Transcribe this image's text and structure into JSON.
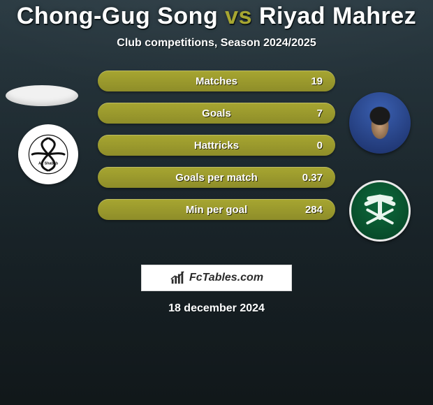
{
  "title": {
    "player1": "Chong-Gug Song",
    "vs": "vs",
    "player2": "Riyad Mahrez"
  },
  "subtitle": "Club competitions, Season 2024/2025",
  "colors": {
    "bar_fill": "#a7a631",
    "bar_fill_dark": "#8e8d29",
    "text": "#ffffff",
    "accent": "#a7a631",
    "bg_top": "#2a3a42",
    "bg_bottom": "#1a2428"
  },
  "stats": [
    {
      "label": "Matches",
      "value_right": "19"
    },
    {
      "label": "Goals",
      "value_right": "7"
    },
    {
      "label": "Hattricks",
      "value_right": "0"
    },
    {
      "label": "Goals per match",
      "value_right": "0.37"
    },
    {
      "label": "Min per goal",
      "value_right": "284"
    }
  ],
  "branding": {
    "text": "FcTables.com"
  },
  "date": "18 december 2024",
  "left_club_text": "Al Shabab"
}
